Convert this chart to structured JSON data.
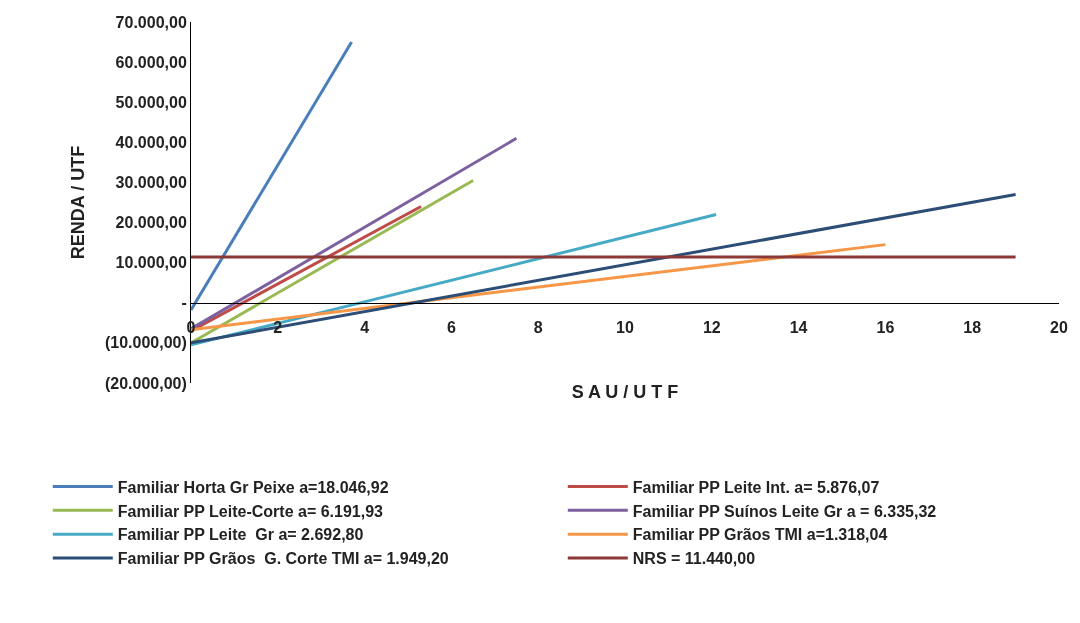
{
  "chart_data": {
    "type": "line",
    "xlabel": "S A U / U T F",
    "ylabel": "RENDA / UTF",
    "xlim": [
      0,
      20
    ],
    "xticks": [
      0,
      2,
      4,
      6,
      8,
      10,
      12,
      14,
      16,
      18,
      20
    ],
    "ylim": [
      -20000,
      70000
    ],
    "yticks": [
      {
        "value": -20000,
        "label": "(20.000,00)"
      },
      {
        "value": -10000,
        "label": "(10.000,00)"
      },
      {
        "value": 0,
        "label": "-"
      },
      {
        "value": 10000,
        "label": "10.000,00"
      },
      {
        "value": 20000,
        "label": "20.000,00"
      },
      {
        "value": 30000,
        "label": "30.000,00"
      },
      {
        "value": 40000,
        "label": "40.000,00"
      },
      {
        "value": 50000,
        "label": "50.000,00"
      },
      {
        "value": 60000,
        "label": "60.000,00"
      },
      {
        "value": 70000,
        "label": "70.000,00"
      }
    ],
    "legend": "bottom",
    "marker": "none",
    "series": [
      {
        "name": "Familiar Horta Gr Peixe a=18.046,92",
        "color": "#4a7ebb",
        "x": [
          0,
          3.7
        ],
        "values": [
          -1800,
          65000
        ]
      },
      {
        "name": "Familiar PP Leite Int. a= 5.876,07",
        "color": "#be4b48",
        "x": [
          0,
          5.3
        ],
        "values": [
          -7000,
          24000
        ]
      },
      {
        "name": "Familiar PP Leite-Corte a= 6.191,93",
        "color": "#98b954",
        "x": [
          0,
          6.5
        ],
        "values": [
          -10000,
          30500
        ]
      },
      {
        "name": "Familiar PP Suínos Leite Gr a = 6.335,32",
        "color": "#7d60a0",
        "x": [
          0,
          7.5
        ],
        "values": [
          -6500,
          41000
        ]
      },
      {
        "name": "Familiar PP Leite  Gr a= 2.692,80",
        "color": "#46aac5",
        "x": [
          0,
          12.1
        ],
        "values": [
          -10500,
          22000
        ]
      },
      {
        "name": "Familiar PP Grãos TMI a=1.318,04",
        "color": "#f79646",
        "x": [
          0,
          16
        ],
        "values": [
          -6700,
          14500
        ]
      },
      {
        "name": "Familiar PP Grãos  G. Corte TMI a= 1.949,20",
        "color": "#2c4d75",
        "x": [
          0,
          19
        ],
        "values": [
          -10000,
          27000
        ]
      },
      {
        "name": "NRS = 11.440,00",
        "color": "#8c3836",
        "x": [
          0,
          19
        ],
        "values": [
          11440,
          11440
        ]
      }
    ]
  }
}
